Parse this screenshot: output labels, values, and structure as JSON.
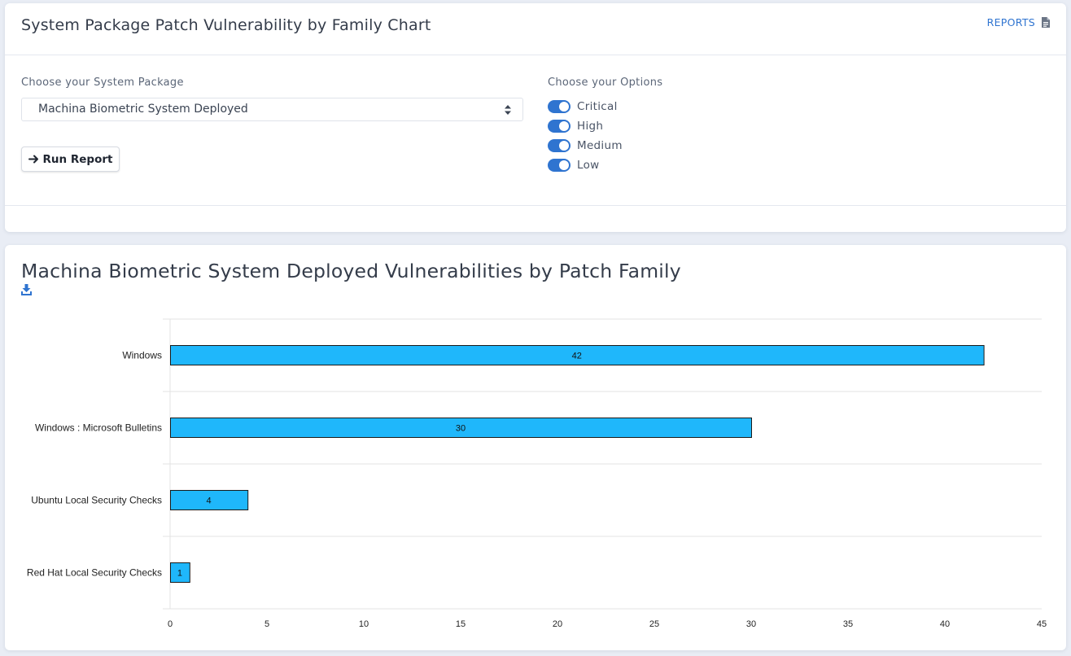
{
  "header": {
    "title": "System Package Patch Vulnerability by Family Chart",
    "reports_label": "REPORTS"
  },
  "form": {
    "package_label": "Choose your System Package",
    "package_value": "Machina Biometric System Deployed",
    "options_label": "Choose your Options",
    "run_label": "Run Report",
    "options": [
      {
        "label": "Critical",
        "enabled": true
      },
      {
        "label": "High",
        "enabled": true
      },
      {
        "label": "Medium",
        "enabled": true
      },
      {
        "label": "Low",
        "enabled": true
      }
    ]
  },
  "colors": {
    "accent": "#2f74d0",
    "bar_fill": "#1fb7fb",
    "bar_stroke": "#1a1a1a"
  },
  "icons": {
    "reports": "document-icon",
    "download": "download-icon",
    "run": "arrow-right-icon",
    "select": "sort-arrows-icon"
  },
  "chart_data": {
    "type": "bar",
    "orientation": "horizontal",
    "title": "Machina Biometric System Deployed Vulnerabilities by Patch Family",
    "categories": [
      "Windows",
      "Windows : Microsoft Bulletins",
      "Ubuntu Local Security Checks",
      "Red Hat Local Security Checks"
    ],
    "values": [
      42,
      30,
      4,
      1
    ],
    "xlim": [
      0,
      45
    ],
    "xticks": [
      0,
      5,
      10,
      15,
      20,
      25,
      30,
      35,
      40,
      45
    ],
    "xlabel": "",
    "ylabel": "",
    "grid": true
  }
}
